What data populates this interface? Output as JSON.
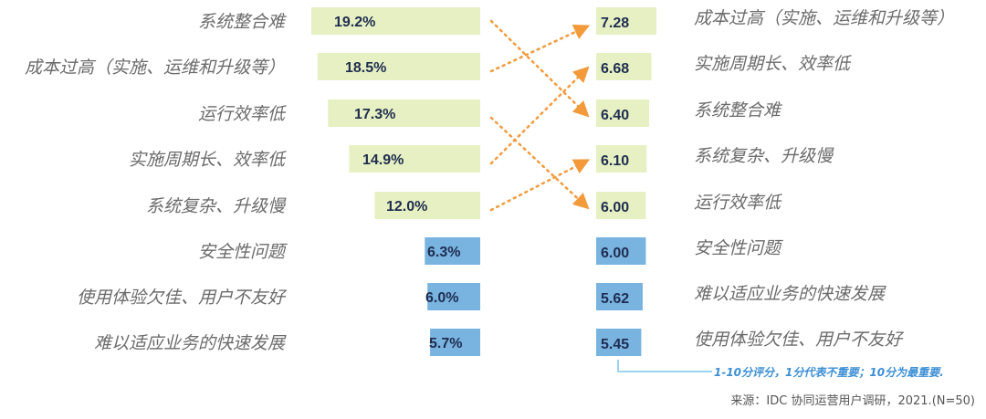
{
  "chart_data": [
    {
      "type": "bar",
      "orientation": "horizontal",
      "categories": [
        "系统整合难",
        "成本过高（实施、运维和升级等）",
        "运行效率低",
        "实施周期长、效率低",
        "系统复杂、升级慢",
        "安全性问题",
        "使用体验欠佳、用户不友好",
        "难以适应业务的快速发展"
      ],
      "values": [
        19.2,
        18.5,
        17.3,
        14.9,
        12.0,
        6.3,
        6.0,
        5.7
      ],
      "value_labels": [
        "19.2%",
        "18.5%",
        "17.3%",
        "14.9%",
        "12.0%",
        "6.3%",
        "6.0%",
        "5.7%"
      ],
      "highlight_count": 5,
      "colors": {
        "highlight": "#e6f0c2",
        "normal": "#79b3e0"
      }
    },
    {
      "type": "bar",
      "orientation": "horizontal",
      "categories": [
        "成本过高（实施、运维和升级等）",
        "实施周期长、效率低",
        "系统整合难",
        "系统复杂、升级慢",
        "运行效率低",
        "安全性问题",
        "难以适应业务的快速发展",
        "使用体验欠佳、用户不友好"
      ],
      "values": [
        7.28,
        6.68,
        6.4,
        6.1,
        6.0,
        6.0,
        5.62,
        5.45
      ],
      "value_labels": [
        "7.28",
        "6.68",
        "6.40",
        "6.10",
        "6.00",
        "6.00",
        "5.62",
        "5.45"
      ],
      "highlight_count": 5,
      "colors": {
        "highlight": "#e6f0c2",
        "normal": "#79b3e0"
      }
    }
  ],
  "links": [
    [
      0,
      2
    ],
    [
      1,
      0
    ],
    [
      2,
      4
    ],
    [
      3,
      1
    ],
    [
      4,
      3
    ]
  ],
  "link_color": "#f39a3b",
  "note": "1-10分评分，1分代表不重要；10分为最重要.",
  "source": "来源：IDC 协同运营用户调研，2021.(N=50)"
}
